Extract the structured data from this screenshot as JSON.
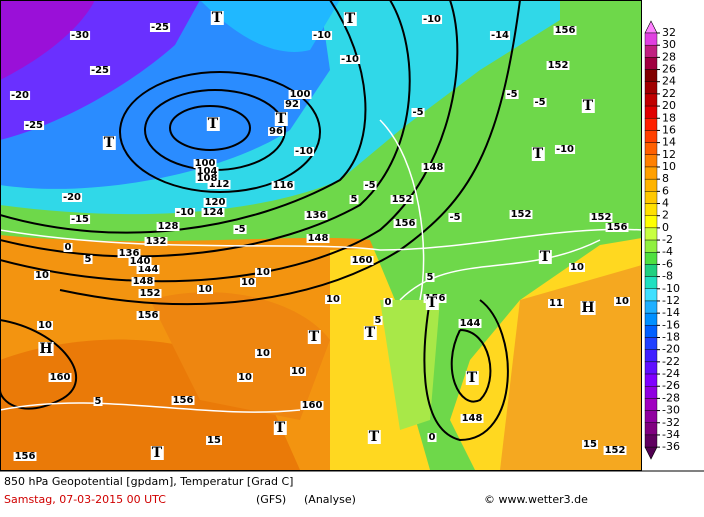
{
  "map": {
    "labels": [
      "-30",
      "-25",
      "-20",
      "-25",
      "-25",
      "-20",
      "-15",
      "-10",
      "-5",
      "0",
      "5",
      "10",
      "10",
      "10",
      "10",
      "10",
      "10",
      "5",
      "10",
      "10",
      "10",
      "15",
      "5",
      "0",
      "5",
      "-5",
      "-5",
      "-10",
      "-10",
      "-10",
      "-5",
      "-10",
      "-14",
      "-5",
      "10",
      "11",
      "10",
      "0",
      "15",
      "-5",
      "5",
      "-10",
      "156",
      "152",
      "148",
      "152",
      "156",
      "152",
      "152",
      "156",
      "144",
      "148",
      "152",
      "156",
      "160",
      "156",
      "160",
      "156",
      "148",
      "152",
      "144",
      "156",
      "148",
      "136",
      "160",
      "116",
      "120",
      "124",
      "128",
      "132",
      "136",
      "140",
      "112",
      "100",
      "104",
      "108",
      "100",
      "96",
      "92",
      "T",
      "T",
      "T",
      "T",
      "T",
      "T",
      "T",
      "T",
      "T",
      "T",
      "T",
      "T",
      "T",
      "H",
      "H",
      "T",
      "T"
    ]
  },
  "colorbar": {
    "ticks": [
      32,
      30,
      28,
      26,
      24,
      22,
      20,
      18,
      16,
      14,
      12,
      10,
      8,
      6,
      4,
      2,
      0,
      -2,
      -4,
      -6,
      -8,
      -10,
      -12,
      -14,
      -16,
      -18,
      -20,
      -22,
      -24,
      -26,
      -28,
      -30,
      -32,
      -34,
      -36
    ],
    "colors": [
      "#e040e0",
      "#c02080",
      "#a00040",
      "#800000",
      "#a00000",
      "#c00000",
      "#e00000",
      "#ff2000",
      "#ff4000",
      "#ff6000",
      "#ff8000",
      "#ffa000",
      "#ffb400",
      "#ffc800",
      "#ffe000",
      "#ffff00",
      "#c8ff40",
      "#90f040",
      "#50e040",
      "#20d080",
      "#20e0c0",
      "#40e0ff",
      "#20b0ff",
      "#0090ff",
      "#0060ff",
      "#2040ff",
      "#4020ff",
      "#6010ff",
      "#8000ff",
      "#9000e0",
      "#a000c0",
      "#9000a0",
      "#800080",
      "#600060"
    ]
  },
  "footer": {
    "title": "850 hPa Geopotential [gpdam], Temperatur [Grad C]",
    "date": "Samstag, 07-03-2015  00 UTC",
    "model": "(GFS)",
    "run": "(Analyse)",
    "source": "© www.wetter3.de"
  }
}
